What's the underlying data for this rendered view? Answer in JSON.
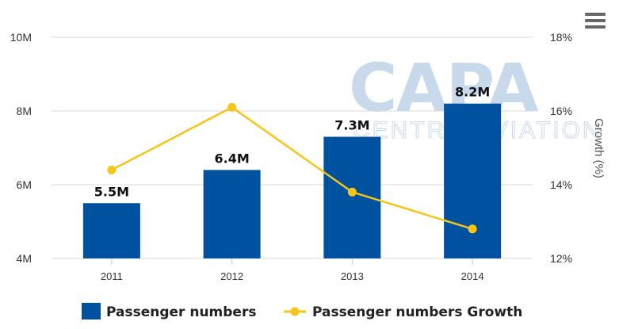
{
  "watermark": {
    "brand": "CAPA",
    "line1": "CENTRE",
    "line2": "AVIATION"
  },
  "menu_icon": "hamburger-menu-icon",
  "colors": {
    "bar": "#00519f",
    "line": "#f5c518",
    "grid": "#d8d8d8",
    "watermark": "#c9d9ec"
  },
  "legend": {
    "bar_label": "Passenger numbers",
    "line_label": "Passenger numbers Growth"
  },
  "chart_data": {
    "type": "bar",
    "categories": [
      "2011",
      "2012",
      "2013",
      "2014"
    ],
    "series": [
      {
        "name": "Passenger numbers",
        "type": "bar",
        "axis": "left",
        "values": [
          5.5,
          6.4,
          7.3,
          8.2
        ],
        "labels": [
          "5.5M",
          "6.4M",
          "7.3M",
          "8.2M"
        ]
      },
      {
        "name": "Passenger numbers Growth",
        "type": "line",
        "axis": "right",
        "values": [
          14.4,
          16.1,
          13.8,
          12.8
        ]
      }
    ],
    "y_left": {
      "ylim": [
        4,
        10
      ],
      "ticks": [
        4,
        6,
        8,
        10
      ],
      "tick_labels": [
        "4M",
        "6M",
        "8M",
        "10M"
      ]
    },
    "y_right": {
      "label": "Growth (%)",
      "ylim": [
        12,
        18
      ],
      "ticks": [
        12,
        14,
        16,
        18
      ],
      "tick_labels": [
        "12%",
        "14%",
        "16%",
        "18%"
      ]
    },
    "grid": true,
    "legend_position": "bottom-center"
  }
}
